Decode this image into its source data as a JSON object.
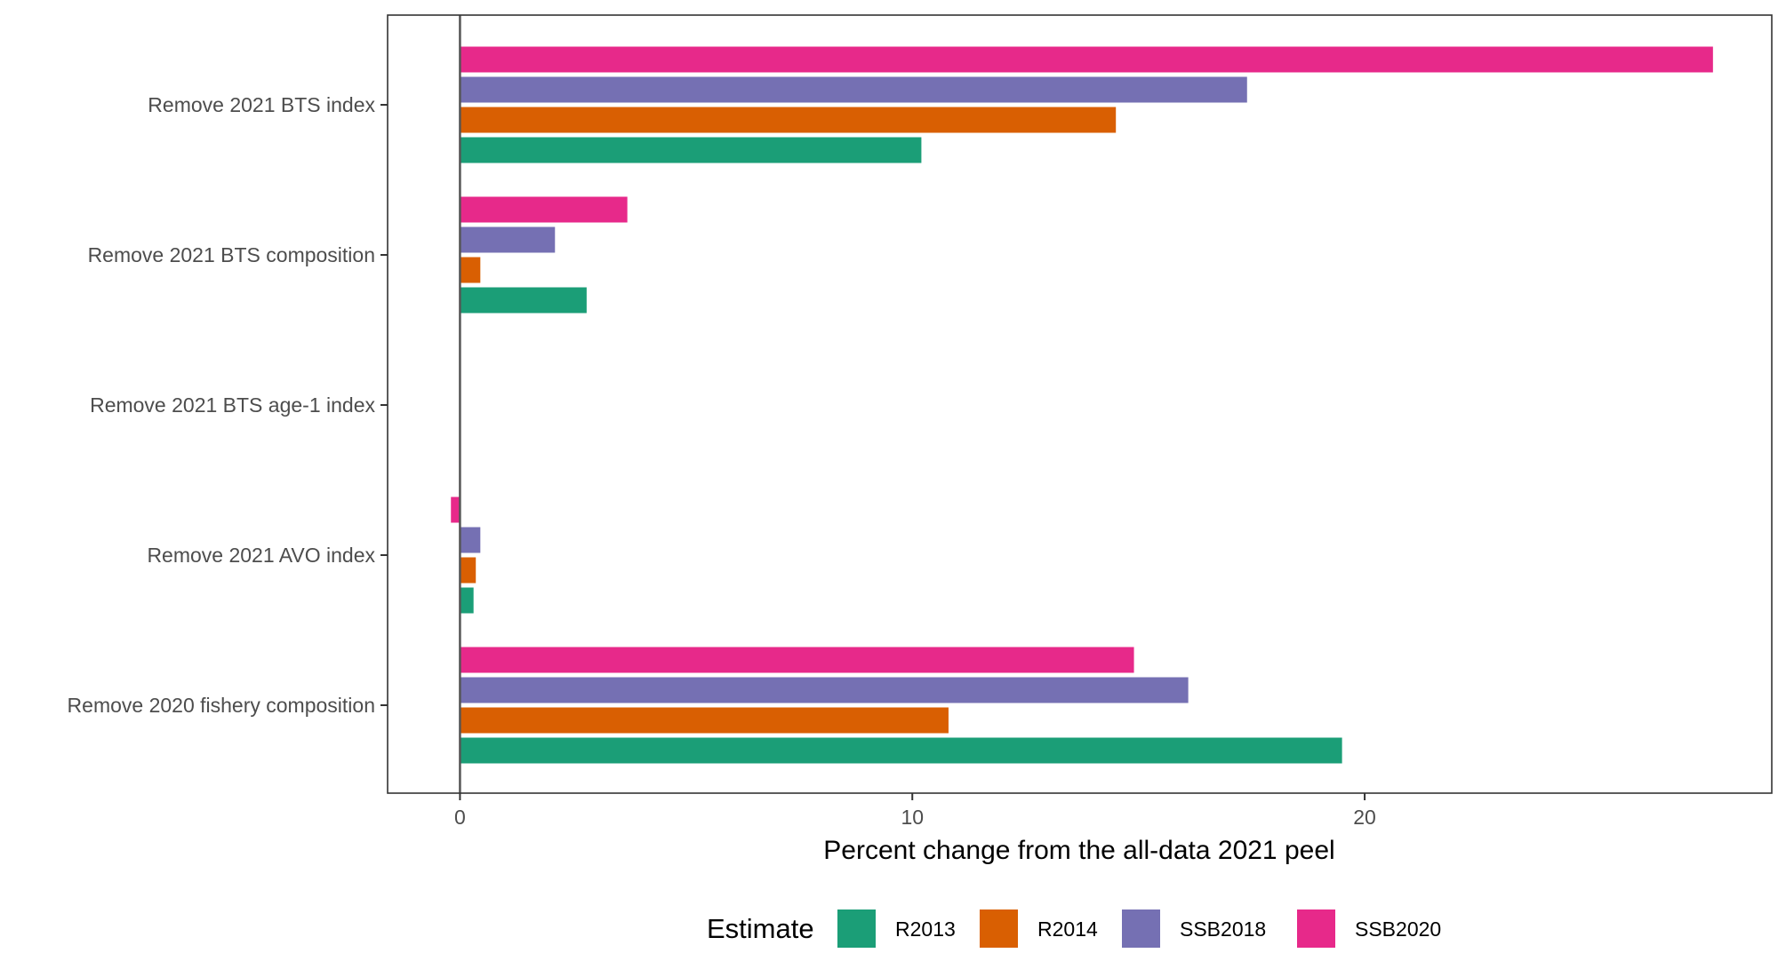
{
  "chart_data": {
    "type": "bar",
    "orientation": "horizontal",
    "categories": [
      "Remove 2021 BTS index",
      "Remove 2021 BTS composition",
      "Remove 2021 BTS age-1 index",
      "Remove 2021 AVO index",
      "Remove 2020 fishery composition"
    ],
    "series": [
      {
        "name": "R2013",
        "color": "#1b9e77",
        "values": [
          10.2,
          2.8,
          0,
          0.3,
          19.5
        ]
      },
      {
        "name": "R2014",
        "color": "#d95f02",
        "values": [
          14.5,
          0.45,
          0,
          0.35,
          10.8
        ]
      },
      {
        "name": "SSB2018",
        "color": "#7570b3",
        "values": [
          17.4,
          2.1,
          0,
          0.45,
          16.1
        ]
      },
      {
        "name": "SSB2020",
        "color": "#e7298a",
        "values": [
          27.7,
          3.7,
          0,
          -0.2,
          14.9
        ]
      }
    ],
    "xlabel": "Percent change from the all-data 2021 peel",
    "ylabel": "",
    "xlim": [
      -1.6,
      29.0
    ],
    "xticks": [
      "0",
      "10",
      "20"
    ],
    "legend": {
      "title": "Estimate",
      "position": "bottom"
    },
    "grid": false,
    "zero_line": true
  }
}
